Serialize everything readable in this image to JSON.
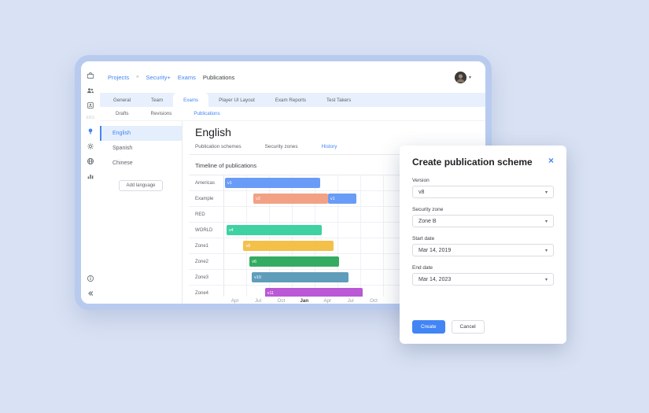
{
  "colors": {
    "accent": "#4285f4",
    "page_bg": "#d9e2f4",
    "frame": "#b8cbef",
    "tabstrip_bg": "#e7f0fc",
    "active_lang_bg": "#e4eefc"
  },
  "header": {
    "breadcrumb": [
      "Projects",
      "Security+",
      "Exams",
      "Publications"
    ]
  },
  "sidebar": {
    "icons": [
      {
        "name": "briefcase-icon"
      },
      {
        "name": "users-icon"
      },
      {
        "name": "id-badge-icon"
      },
      {
        "name": "ebs-label",
        "text": "EBS"
      },
      {
        "name": "lightbulb-icon",
        "active": true
      },
      {
        "name": "gear-icon"
      },
      {
        "name": "globe-icon"
      },
      {
        "name": "bar-chart-icon"
      }
    ],
    "bottom_icons": [
      {
        "name": "info-icon"
      },
      {
        "name": "collapse-icon"
      }
    ]
  },
  "tabs": {
    "items": [
      "General",
      "Team",
      "Exams",
      "Player UI Layout",
      "Exam Reports",
      "Test Takers"
    ],
    "active": "Exams"
  },
  "subtabs": {
    "items": [
      "Drafts",
      "Revisions",
      "Publications"
    ],
    "active": "Publications"
  },
  "languages": {
    "items": [
      "English",
      "Spanish",
      "Chinese"
    ],
    "active": "English",
    "add_button": "Add language"
  },
  "content": {
    "title": "English",
    "tabs": [
      "Publication schemes",
      "Security zones",
      "History"
    ],
    "active_tab": "History",
    "timeline_title": "Timeline of publications"
  },
  "chart_data": {
    "type": "gantt",
    "title": "Timeline of publications",
    "axis_total_months": 34,
    "axis_ticks": [
      {
        "label": "Apr",
        "m": 1.5
      },
      {
        "label": "Jul",
        "m": 4.5
      },
      {
        "label": "Oct",
        "m": 7.5
      },
      {
        "label": "Jan",
        "m": 10.5,
        "bold": true
      },
      {
        "label": "Apr",
        "m": 13.5
      },
      {
        "label": "Jul",
        "m": 16.5
      },
      {
        "label": "Oct",
        "m": 19.5
      }
    ],
    "rows": [
      {
        "label": "Americas",
        "bars": [
          {
            "name": "v1",
            "start": 0.1,
            "end": 12.5,
            "color": "#699cf6"
          }
        ]
      },
      {
        "label": "Example",
        "bars": [
          {
            "name": "v2",
            "start": 3.8,
            "end": 13.5,
            "color": "#f2a184"
          },
          {
            "name": "v1",
            "start": 13.5,
            "end": 17.2,
            "color": "#699cf6"
          }
        ]
      },
      {
        "label": "RED",
        "bars": []
      },
      {
        "label": "WORLD",
        "bars": [
          {
            "name": "v4",
            "start": 0.3,
            "end": 12.7,
            "color": "#3ed1a2"
          }
        ]
      },
      {
        "label": "Zone1",
        "bars": [
          {
            "name": "v8",
            "start": 2.5,
            "end": 14.2,
            "color": "#f3c04a"
          }
        ]
      },
      {
        "label": "Zone2",
        "bars": [
          {
            "name": "v6",
            "start": 3.3,
            "end": 15.0,
            "color": "#33ac62"
          }
        ]
      },
      {
        "label": "Zone3",
        "bars": [
          {
            "name": "v10",
            "start": 3.6,
            "end": 16.2,
            "color": "#5f9dbb"
          }
        ]
      },
      {
        "label": "Zone4",
        "bars": [
          {
            "name": "v11",
            "start": 5.3,
            "end": 18.0,
            "color": "#ba58d5"
          }
        ]
      }
    ]
  },
  "modal": {
    "title": "Create publication scheme",
    "close_icon": "×",
    "fields": [
      {
        "label": "Version",
        "value": "v8"
      },
      {
        "label": "Security zone",
        "value": "Zone B"
      },
      {
        "label": "Start date",
        "value": "Mar 14, 2019"
      },
      {
        "label": "End date",
        "value": "Mar 14, 2023"
      }
    ],
    "buttons": {
      "create": "Create",
      "cancel": "Cancel"
    }
  }
}
